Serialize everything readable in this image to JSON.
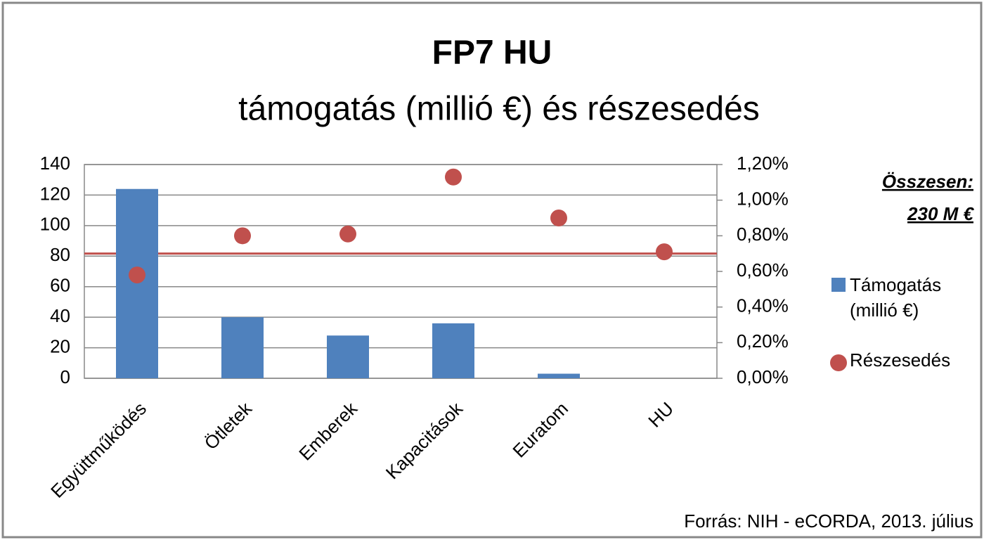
{
  "chart_data": {
    "type": "bar_scatter",
    "title": "FP7 HU",
    "subtitle": "támogatás (millió €) és részesedés",
    "categories": [
      "Együttműködés",
      "Ötletek",
      "Emberek",
      "Kapacitások",
      "Euratom",
      "HU"
    ],
    "series": [
      {
        "name": "Támogatás (millió €)",
        "color": "#4f81bd",
        "type": "bar",
        "values": [
          124,
          40,
          28,
          36,
          3,
          null
        ]
      },
      {
        "name": "Részesedés",
        "color": "#c0504d",
        "type": "scatter",
        "axis": "y2",
        "values": [
          0.58,
          0.8,
          0.81,
          1.13,
          0.9,
          0.71
        ]
      }
    ],
    "reference_line": {
      "value": 0.7,
      "axis": "y2",
      "color": "#c0504d"
    },
    "ylim": [
      0,
      140
    ],
    "yticks": [
      0,
      20,
      40,
      60,
      80,
      100,
      120,
      140
    ],
    "y2lim": [
      0,
      1.2
    ],
    "y2ticks": [
      {
        "value": 0,
        "label": "0,00%"
      },
      {
        "value": 0.2,
        "label": "0,20%"
      },
      {
        "value": 0.4,
        "label": "0,40%"
      },
      {
        "value": 0.6,
        "label": "0,60%"
      },
      {
        "value": 0.8,
        "label": "0,80%"
      },
      {
        "value": 1.0,
        "label": "1,00%"
      },
      {
        "value": 1.2,
        "label": "1,20%"
      }
    ],
    "grid": true,
    "legend": "right",
    "annotations": [
      "Összesen:",
      "230 M €"
    ],
    "source": "Forrás: NIH - eCORDA, 2013. július"
  }
}
